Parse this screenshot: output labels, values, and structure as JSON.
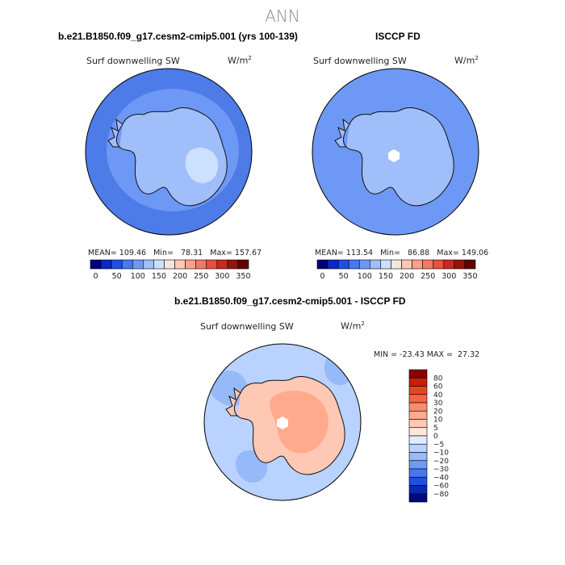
{
  "figure": {
    "season": "ANN"
  },
  "chart_data": [
    {
      "type": "heatmap",
      "projection": "south-polar-stereographic",
      "title": "b.e21.B1850.f09_g17.cesm2-cmip5.001 (yrs 100-139)",
      "variable": "Surf downwelling SW",
      "units": "W/m",
      "units_exp": "2",
      "stats": {
        "mean_label": "MEAN=",
        "mean": "109.46",
        "min_label": "Min=",
        "min": "78.31",
        "max_label": "Max=",
        "max": "157.67"
      },
      "colorbar_ticks": [
        "0",
        "50",
        "100",
        "150",
        "200",
        "250",
        "300",
        "350"
      ],
      "colorbar_colors": [
        "#00007a",
        "#0a28c8",
        "#1e50e6",
        "#4678f0",
        "#6e98f5",
        "#a0befa",
        "#cce0ff",
        "#f5e6dc",
        "#ffc8b4",
        "#ffa08c",
        "#f57864",
        "#e6503c",
        "#c82a1e",
        "#961408",
        "#640000"
      ],
      "field": {
        "ocean": "#4d7be8",
        "inner_ring": "#6e98f5",
        "continent": "#a0befa",
        "peak": "#cce0ff",
        "peak_value": 157.67
      }
    },
    {
      "type": "heatmap",
      "projection": "south-polar-stereographic",
      "title": "ISCCP FD",
      "variable": "Surf downwelling SW",
      "units": "W/m",
      "units_exp": "2",
      "stats": {
        "mean_label": "MEAN=",
        "mean": "113.54",
        "min_label": "Min=",
        "min": "86.88",
        "max_label": "Max=",
        "max": "149.06"
      },
      "colorbar_ticks": [
        "0",
        "50",
        "100",
        "150",
        "200",
        "250",
        "300",
        "350"
      ],
      "colorbar_colors": [
        "#00007a",
        "#0a28c8",
        "#1e50e6",
        "#4678f0",
        "#6e98f5",
        "#a0befa",
        "#cce0ff",
        "#f5e6dc",
        "#ffc8b4",
        "#ffa08c",
        "#f57864",
        "#e6503c",
        "#c82a1e",
        "#961408",
        "#640000"
      ],
      "field": {
        "ocean": "#6e98f5",
        "inner_ring": "#6e98f5",
        "continent": "#a0befa",
        "peak": "#ffffff",
        "peak_value": 149.06
      }
    },
    {
      "type": "heatmap",
      "projection": "south-polar-stereographic",
      "title": "b.e21.B1850.f09_g17.cesm2-cmip5.001 - ISCCP FD",
      "variable": "Surf downwelling SW",
      "units": "W/m",
      "units_exp": "2",
      "stats": {
        "min_label": "MIN =",
        "min": "-23.43",
        "max_label": "MAX =",
        "max": "27.32"
      },
      "colorbar_levels": [
        "80",
        "60",
        "40",
        "30",
        "20",
        "10",
        "5",
        "0",
        "-5",
        "-10",
        "-20",
        "-30",
        "-40",
        "-60",
        "-80"
      ],
      "colorbar_colors": [
        "#8c0000",
        "#c81e0a",
        "#e6461e",
        "#f56446",
        "#fa8c6e",
        "#ffaa8c",
        "#ffc8b4",
        "#ffe6d7",
        "#e1ebff",
        "#b9d2ff",
        "#96b9fa",
        "#6e9bf5",
        "#4678eb",
        "#1e50dc",
        "#0a28b4",
        "#000a78"
      ],
      "field": {
        "ocean": "#b9d2ff",
        "ocean_patch": "#96b9fa",
        "continent": "#ffc8b4",
        "continent_core": "#ffaa8c",
        "pole": "#ffffff"
      }
    }
  ]
}
